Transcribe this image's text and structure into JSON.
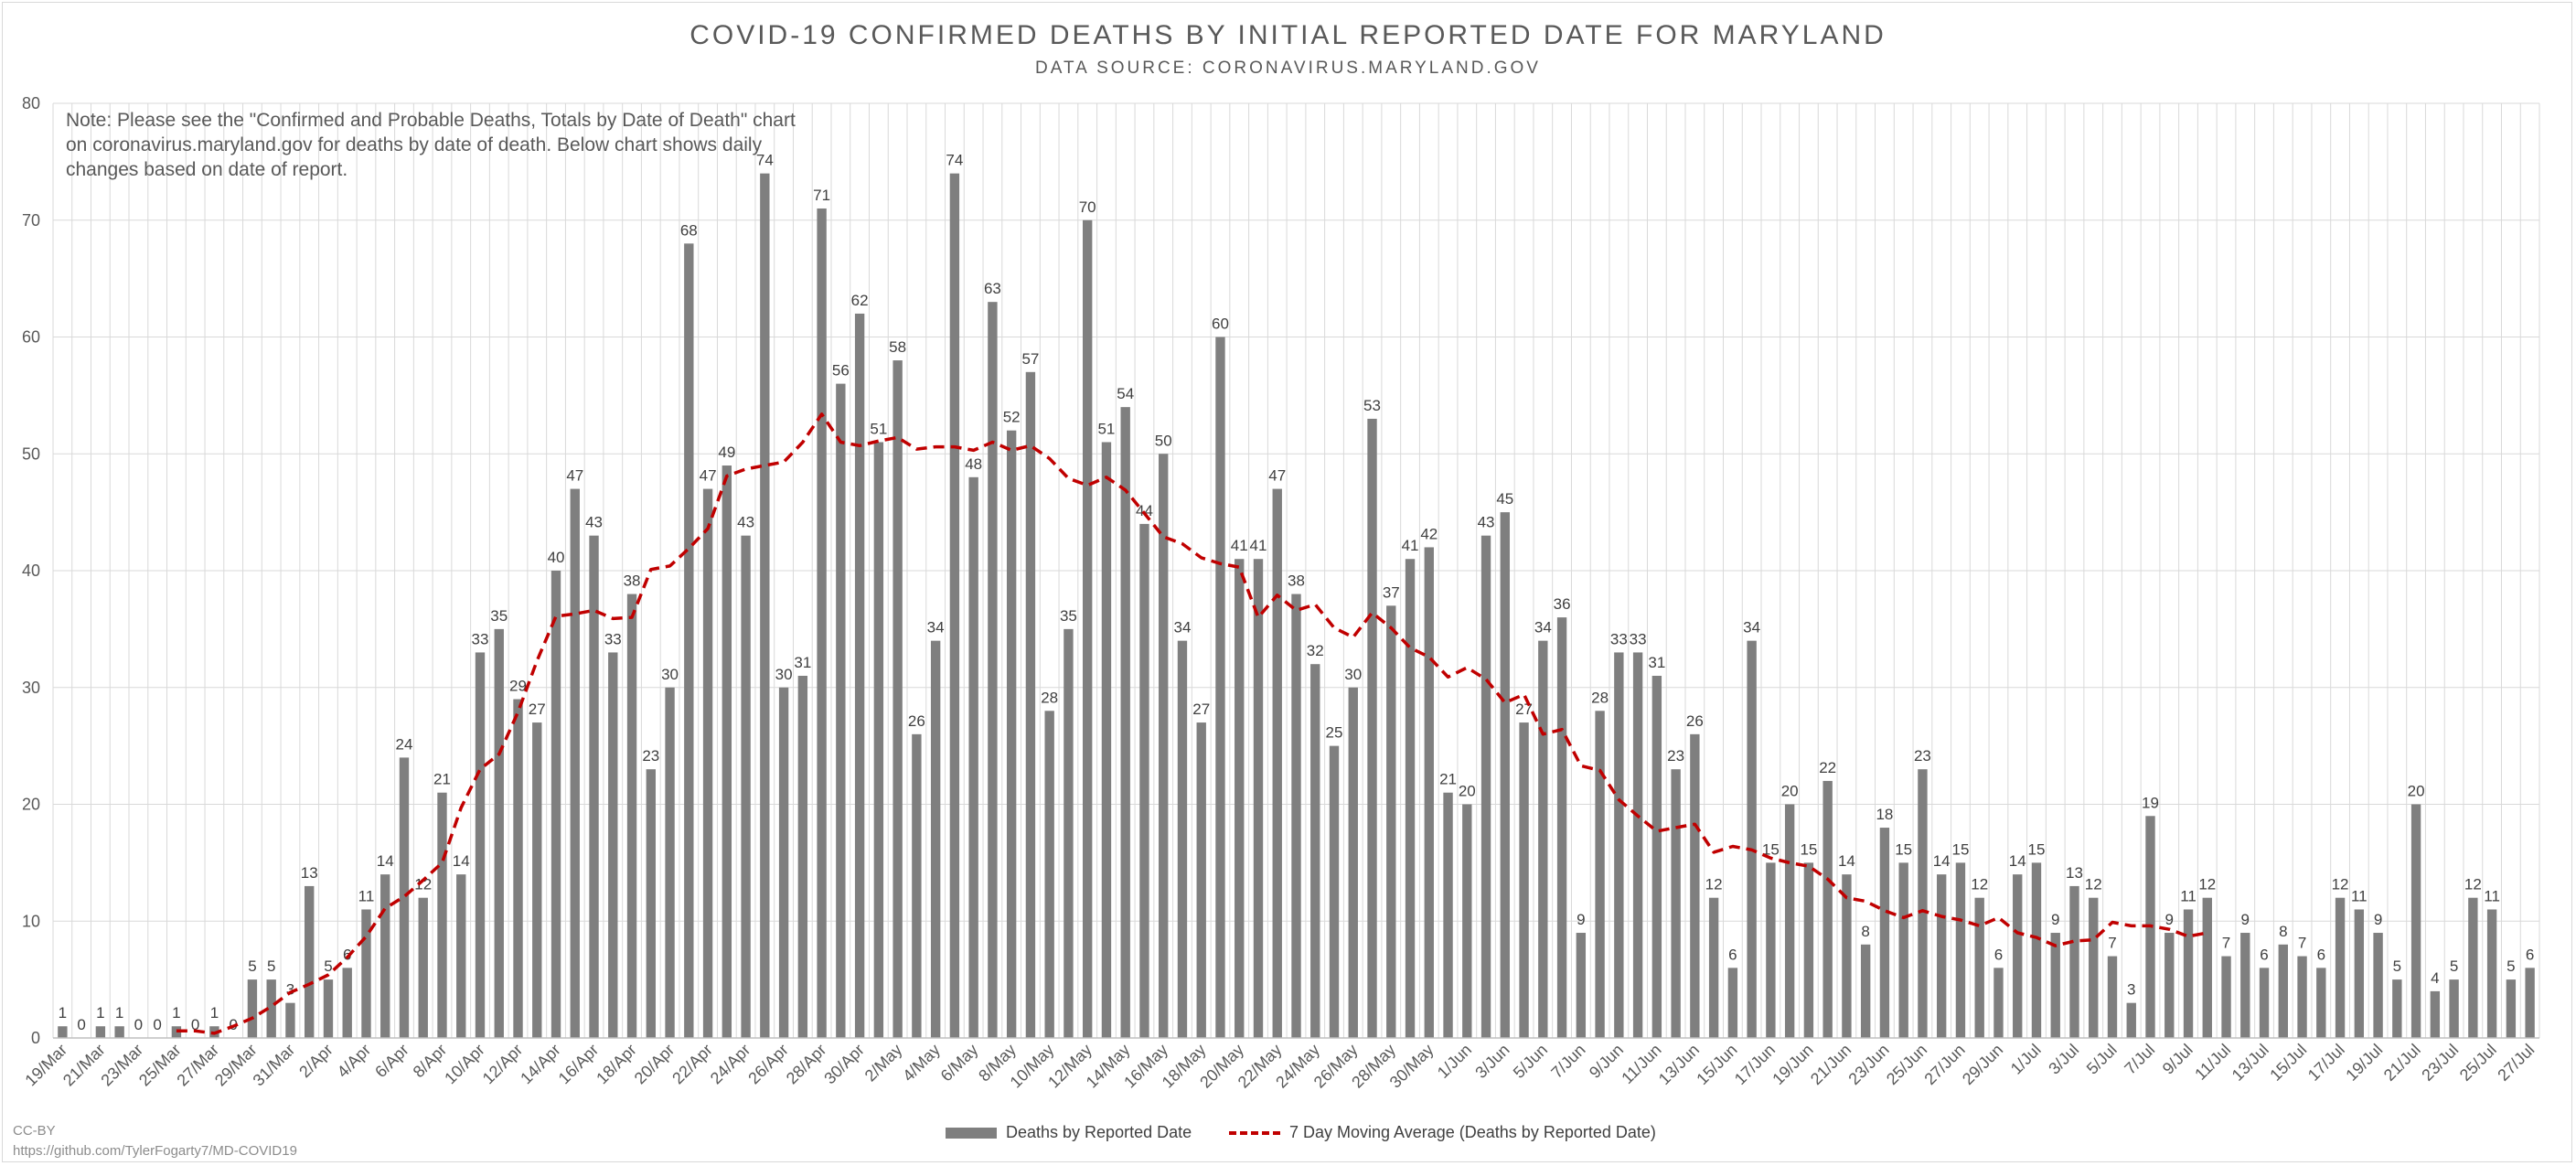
{
  "title": "COVID-19 CONFIRMED DEATHS BY INITIAL REPORTED DATE FOR MARYLAND",
  "subtitle": "DATA SOURCE: CORONAVIRUS.MARYLAND.GOV",
  "note": "Note: Please see the \"Confirmed and Probable Deaths, Totals by Date of Death\" chart on coronavirus.maryland.gov for deaths by date of death. Below chart shows daily changes based on date of report.",
  "credit": {
    "license": "CC-BY",
    "url": "https://github.com/TylerFogarty7/MD-COVID19"
  },
  "colors": {
    "bar": "#7f7f7f",
    "moving_average": "#c00000",
    "grid": "#d9d9d9",
    "text": "#595959"
  },
  "chart_data": {
    "type": "bar",
    "ylim": [
      0,
      80
    ],
    "yticks": [
      0,
      10,
      20,
      30,
      40,
      50,
      60,
      70,
      80
    ],
    "grid": true,
    "legend_position": "bottom",
    "x_start_date": "19/Mar",
    "x_tick_labels": [
      "19/Mar",
      "21/Mar",
      "23/Mar",
      "25/Mar",
      "27/Mar",
      "29/Mar",
      "31/Mar",
      "2/Apr",
      "4/Apr",
      "6/Apr",
      "8/Apr",
      "10/Apr",
      "12/Apr",
      "14/Apr",
      "16/Apr",
      "18/Apr",
      "20/Apr",
      "22/Apr",
      "24/Apr",
      "26/Apr",
      "28/Apr",
      "30/Apr",
      "2/May",
      "4/May",
      "6/May",
      "8/May",
      "10/May",
      "12/May",
      "14/May",
      "16/May",
      "18/May",
      "20/May",
      "22/May",
      "24/May",
      "26/May",
      "28/May",
      "30/May",
      "1/Jun",
      "3/Jun",
      "5/Jun",
      "7/Jun",
      "9/Jun",
      "11/Jun",
      "13/Jun",
      "15/Jun",
      "17/Jun",
      "19/Jun",
      "21/Jun",
      "23/Jun",
      "25/Jun",
      "27/Jun",
      "29/Jun",
      "1/Jul",
      "3/Jul",
      "5/Jul",
      "7/Jul",
      "9/Jul",
      "11/Jul",
      "13/Jul",
      "15/Jul",
      "17/Jul",
      "19/Jul",
      "21/Jul",
      "23/Jul",
      "25/Jul",
      "27/Jul"
    ],
    "series": [
      {
        "name": "Deaths by Reported Date",
        "type": "bar",
        "values": [
          1,
          0,
          1,
          1,
          0,
          0,
          1,
          0,
          1,
          0,
          5,
          5,
          3,
          13,
          5,
          6,
          11,
          14,
          24,
          12,
          21,
          14,
          33,
          35,
          29,
          27,
          40,
          47,
          43,
          33,
          38,
          23,
          30,
          68,
          47,
          49,
          43,
          74,
          30,
          31,
          71,
          56,
          62,
          51,
          58,
          26,
          34,
          74,
          48,
          63,
          52,
          57,
          28,
          35,
          70,
          51,
          54,
          44,
          50,
          34,
          27,
          60,
          41,
          41,
          47,
          38,
          32,
          25,
          30,
          53,
          37,
          41,
          42,
          21,
          20,
          43,
          45,
          27,
          34,
          36,
          9,
          28,
          33,
          33,
          31,
          23,
          26,
          12,
          6,
          34,
          15,
          20,
          15,
          22,
          14,
          8,
          18,
          15,
          23,
          14,
          15,
          12,
          6,
          14,
          15,
          9,
          13,
          12,
          7,
          3,
          19,
          9,
          11,
          12,
          7,
          9,
          6,
          8,
          7,
          6,
          12,
          11,
          9,
          5,
          20,
          4,
          5,
          12,
          11,
          5,
          6
        ]
      },
      {
        "name": "7 Day Moving Average (Deaths by Reported Date)",
        "type": "line",
        "start_day_index": 6,
        "values": [
          0.6,
          0.6,
          0.4,
          1.0,
          1.7,
          2.7,
          3.9,
          4.6,
          5.4,
          6.9,
          8.7,
          11.1,
          12.1,
          13.5,
          15.0,
          19.7,
          23.0,
          24.3,
          27.9,
          32.3,
          36.1,
          36.3,
          36.6,
          35.9,
          36.0,
          40.1,
          40.4,
          41.9,
          43.6,
          48.1,
          48.7,
          49.0,
          49.3,
          51.0,
          53.4,
          51.0,
          50.7,
          51.1,
          51.4,
          50.4,
          50.6,
          50.6,
          50.3,
          51.0,
          50.3,
          50.7,
          49.6,
          47.9,
          47.3,
          48.0,
          46.9,
          44.9,
          42.9,
          42.3,
          41.1,
          40.6,
          40.3,
          36.0,
          37.9,
          36.6,
          37.1,
          35.1,
          34.3,
          36.4,
          35.1,
          33.4,
          32.6,
          30.9,
          31.7,
          30.7,
          28.7,
          29.4,
          26.0,
          26.4,
          23.3,
          22.9,
          20.4,
          19.0,
          17.7,
          18.0,
          18.3,
          15.9,
          16.4,
          16.1,
          15.4,
          15.0,
          14.7,
          13.6,
          12.0,
          11.7,
          10.9,
          10.3,
          10.9,
          10.4,
          10.1,
          9.6,
          10.3,
          9.0,
          8.6,
          7.9,
          8.3,
          8.4,
          9.9,
          9.6,
          9.6,
          9.3,
          8.7,
          9.0
        ]
      }
    ]
  }
}
